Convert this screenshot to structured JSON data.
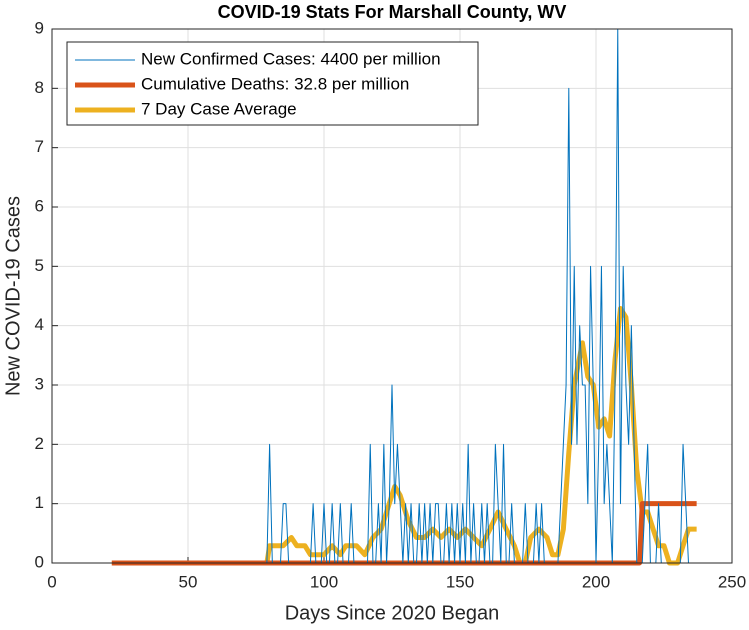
{
  "chart_data": {
    "type": "line",
    "title": "COVID-19 Stats For Marshall County, WV",
    "xlabel": "Days Since 2020 Began",
    "ylabel": "New COVID-19 Cases",
    "xlim": [
      0,
      250
    ],
    "ylim": [
      0,
      9
    ],
    "xticks": [
      0,
      50,
      100,
      150,
      200,
      250
    ],
    "yticks": [
      0,
      1,
      2,
      3,
      4,
      5,
      6,
      7,
      8,
      9
    ],
    "grid": true,
    "legend": "upper left",
    "series": [
      {
        "name": "New Confirmed Cases: 4400 per million",
        "color": "#0072bd",
        "width": 1,
        "x": [
          22,
          23,
          24,
          25,
          26,
          27,
          28,
          29,
          30,
          31,
          32,
          33,
          34,
          35,
          36,
          37,
          38,
          39,
          40,
          41,
          42,
          43,
          44,
          45,
          46,
          47,
          48,
          49,
          50,
          51,
          52,
          53,
          54,
          55,
          56,
          57,
          58,
          59,
          60,
          61,
          62,
          63,
          64,
          65,
          66,
          67,
          68,
          69,
          70,
          71,
          72,
          73,
          74,
          75,
          76,
          77,
          78,
          79,
          80,
          81,
          82,
          83,
          84,
          85,
          86,
          87,
          88,
          89,
          90,
          91,
          92,
          93,
          94,
          95,
          96,
          97,
          98,
          99,
          100,
          101,
          102,
          103,
          104,
          105,
          106,
          107,
          108,
          109,
          110,
          111,
          112,
          113,
          114,
          115,
          116,
          117,
          118,
          119,
          120,
          121,
          122,
          123,
          124,
          125,
          126,
          127,
          128,
          129,
          130,
          131,
          132,
          133,
          134,
          135,
          136,
          137,
          138,
          139,
          140,
          141,
          142,
          143,
          144,
          145,
          146,
          147,
          148,
          149,
          150,
          151,
          152,
          153,
          154,
          155,
          156,
          157,
          158,
          159,
          160,
          161,
          162,
          163,
          164,
          165,
          166,
          167,
          168,
          169,
          170,
          171,
          172,
          173,
          174,
          175,
          176,
          177,
          178,
          179,
          180,
          181,
          182,
          183,
          184,
          185,
          186,
          187,
          188,
          189,
          190,
          191,
          192,
          193,
          194,
          195,
          196,
          197,
          198,
          199,
          200,
          201,
          202,
          203,
          204,
          205,
          206,
          207,
          208,
          209,
          210,
          211,
          212,
          213,
          214,
          215,
          216,
          217,
          218,
          219,
          220,
          221,
          222,
          223,
          224,
          225,
          226,
          227,
          228,
          229,
          230,
          231,
          232,
          233,
          234,
          235,
          236,
          237
        ],
        "values": [
          0,
          0,
          0,
          0,
          0,
          0,
          0,
          0,
          0,
          0,
          0,
          0,
          0,
          0,
          0,
          0,
          0,
          0,
          0,
          0,
          0,
          0,
          0,
          0,
          0,
          0,
          0,
          0,
          0,
          0,
          0,
          0,
          0,
          0,
          0,
          0,
          0,
          0,
          0,
          0,
          0,
          0,
          0,
          0,
          0,
          0,
          0,
          0,
          0,
          0,
          0,
          0,
          0,
          0,
          0,
          0,
          0,
          0,
          2,
          0,
          0,
          0,
          0,
          1,
          1,
          0,
          0,
          0,
          0,
          0,
          0,
          0,
          0,
          0,
          1,
          0,
          0,
          0,
          1,
          0,
          0,
          1,
          0,
          0,
          1,
          0,
          0,
          0,
          1,
          0,
          0,
          0,
          0,
          0,
          0,
          2,
          0,
          0,
          1,
          0,
          2,
          0,
          1,
          3,
          1,
          2,
          1,
          0,
          1,
          0,
          1,
          0,
          0,
          1,
          0,
          1,
          0,
          1,
          0,
          1,
          1,
          0,
          0,
          1,
          0,
          1,
          0,
          1,
          0,
          1,
          0,
          2,
          0,
          1,
          0,
          0,
          1,
          0,
          1,
          0,
          0,
          2,
          1,
          0,
          2,
          0,
          0,
          1,
          0,
          0,
          0,
          0,
          1,
          0,
          0,
          0,
          1,
          0,
          1,
          0,
          0,
          0,
          0,
          0,
          0,
          1,
          2,
          3,
          8,
          2,
          5,
          2,
          4,
          3,
          3,
          1,
          5,
          3,
          0,
          2,
          5,
          1,
          2,
          1,
          0,
          3,
          9,
          1,
          5,
          3,
          2,
          4,
          2,
          0,
          0,
          0,
          1,
          2,
          0,
          0,
          0,
          1,
          0,
          0,
          0,
          0,
          0,
          0,
          0,
          0,
          2,
          1,
          0,
          0,
          0,
          0
        ]
      },
      {
        "name": "Cumulative Deaths: 32.8 per million",
        "color": "#d95319",
        "width": 5,
        "x": [
          22,
          216,
          217,
          237
        ],
        "values": [
          0,
          0,
          1,
          1
        ]
      },
      {
        "name": "7 Day Case Average",
        "color": "#edb120",
        "width": 5,
        "x": [
          22,
          79,
          80,
          85,
          88,
          90,
          93,
          95,
          100,
          103,
          106,
          108,
          112,
          115,
          118,
          121,
          123,
          126,
          128,
          131,
          134,
          137,
          140,
          143,
          146,
          149,
          152,
          155,
          158,
          161,
          164,
          167,
          170,
          172,
          174,
          176,
          179,
          182,
          184,
          186,
          188,
          190,
          192,
          195,
          197,
          199,
          201,
          203,
          205,
          207,
          209,
          211,
          213,
          215,
          217,
          219,
          221,
          223,
          225,
          227,
          230,
          232,
          234,
          237
        ],
        "values": [
          0,
          0,
          0.29,
          0.29,
          0.43,
          0.29,
          0.29,
          0.14,
          0.14,
          0.29,
          0.14,
          0.29,
          0.29,
          0.14,
          0.43,
          0.57,
          0.86,
          1.29,
          1.14,
          0.71,
          0.43,
          0.43,
          0.57,
          0.43,
          0.57,
          0.43,
          0.57,
          0.43,
          0.29,
          0.57,
          0.86,
          0.57,
          0.29,
          0,
          0,
          0.43,
          0.57,
          0.43,
          0.14,
          0.14,
          0.57,
          1.86,
          3.0,
          3.71,
          3.14,
          3.0,
          2.29,
          2.43,
          2.14,
          3.43,
          4.29,
          4.14,
          3.0,
          1.57,
          0.86,
          0.86,
          0.57,
          0.29,
          0.29,
          0,
          0,
          0.29,
          0.57,
          0.57
        ]
      }
    ]
  }
}
